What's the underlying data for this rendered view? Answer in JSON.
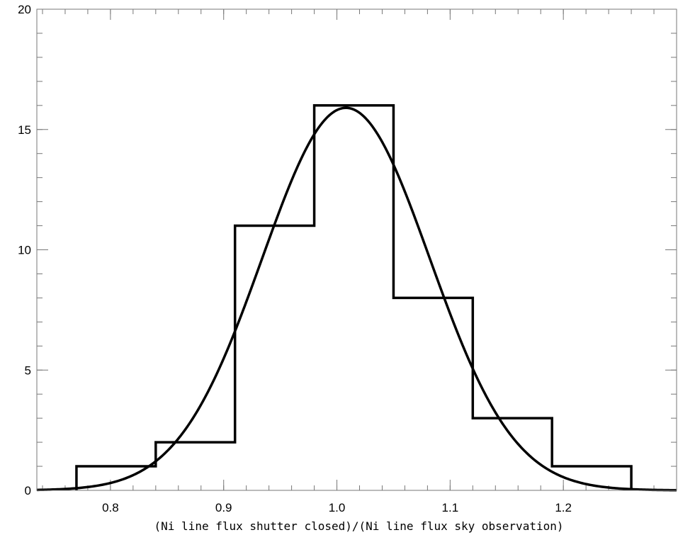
{
  "chart_data": {
    "type": "histogram",
    "title": "",
    "xlabel": "(Ni line flux shutter closed)/(Ni line flux sky observation)",
    "ylabel": "",
    "xlim": [
      0.735,
      1.3
    ],
    "ylim": [
      0,
      20
    ],
    "x_ticks": [
      {
        "value": 0.8,
        "label": "0.8"
      },
      {
        "value": 0.9,
        "label": "0.9"
      },
      {
        "value": 1.0,
        "label": "1.0"
      },
      {
        "value": 1.1,
        "label": "1.1"
      },
      {
        "value": 1.2,
        "label": "1.2"
      }
    ],
    "y_ticks": [
      {
        "value": 0,
        "label": "0"
      },
      {
        "value": 5,
        "label": "5"
      },
      {
        "value": 10,
        "label": "10"
      },
      {
        "value": 15,
        "label": "15"
      },
      {
        "value": 20,
        "label": "20"
      }
    ],
    "grid": false,
    "histogram": {
      "bin_edges": [
        0.77,
        0.84,
        0.91,
        0.98,
        1.05,
        1.12,
        1.19,
        1.26
      ],
      "counts": [
        1,
        2,
        11,
        16,
        8,
        3,
        1
      ]
    },
    "gaussian_fit": {
      "amplitude": 15.9,
      "mean": 1.008,
      "sigma": 0.074
    }
  }
}
